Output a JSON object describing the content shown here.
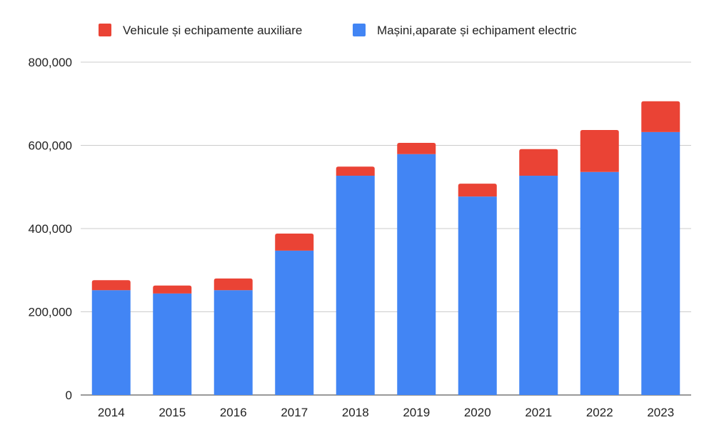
{
  "chart_data": {
    "type": "bar",
    "stacked": true,
    "title": "",
    "xlabel": "",
    "ylabel": "",
    "categories": [
      "2014",
      "2015",
      "2016",
      "2017",
      "2018",
      "2019",
      "2020",
      "2021",
      "2022",
      "2023"
    ],
    "series": [
      {
        "name": "Mașini,aparate și echipament electric",
        "color": "#4285f4",
        "values": [
          252000,
          244000,
          252000,
          347000,
          527000,
          579000,
          477000,
          527000,
          536000,
          632000
        ]
      },
      {
        "name": "Vehicule și echipamente auxiliare",
        "color": "#ea4335",
        "values": [
          24000,
          19000,
          28000,
          41000,
          22000,
          27000,
          31000,
          64000,
          101000,
          74000
        ]
      }
    ],
    "legend_order": [
      1,
      0
    ],
    "legend_position": "top",
    "ylim": [
      0,
      800000
    ],
    "yticks": [
      0,
      200000,
      400000,
      600000,
      800000
    ],
    "ytick_labels": [
      "0",
      "200,000",
      "400,000",
      "600,000",
      "800,000"
    ],
    "grid": true
  }
}
